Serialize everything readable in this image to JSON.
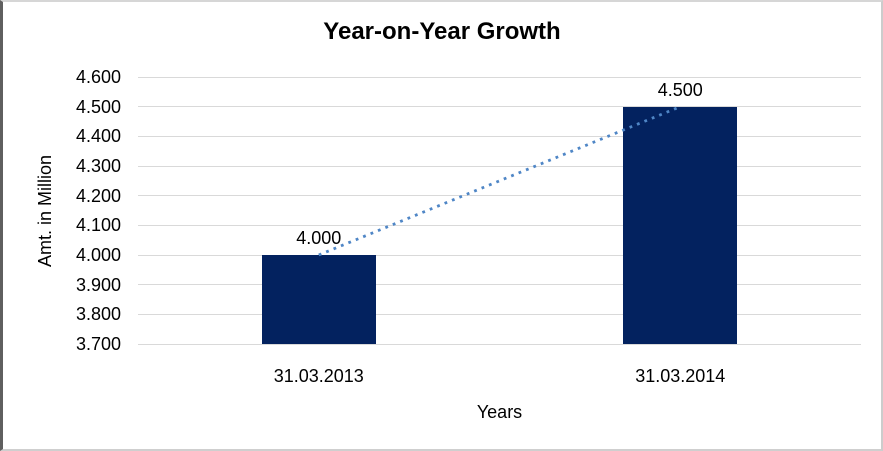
{
  "chart_data": {
    "type": "bar",
    "title": "Year-on-Year Growth",
    "xlabel": "Years",
    "ylabel": "Amt. in Million",
    "categories": [
      "31.03.2013",
      "31.03.2014"
    ],
    "series": [
      {
        "name": "Amt. in Million",
        "values": [
          4000,
          4500
        ],
        "value_labels": [
          "4.000",
          "4.500"
        ]
      }
    ],
    "y_ticks": [
      {
        "value": 4600,
        "label": "4.600"
      },
      {
        "value": 4500,
        "label": "4.500"
      },
      {
        "value": 4400,
        "label": "4.400"
      },
      {
        "value": 4300,
        "label": "4.300"
      },
      {
        "value": 4200,
        "label": "4.200"
      },
      {
        "value": 4100,
        "label": "4.100"
      },
      {
        "value": 4000,
        "label": "4.000"
      },
      {
        "value": 3900,
        "label": "3.900"
      },
      {
        "value": 3800,
        "label": "3.800"
      },
      {
        "value": 3700,
        "label": "3.700"
      }
    ],
    "ylim": [
      3700,
      4600
    ],
    "grid": true,
    "legend": "none",
    "trendline": {
      "style": "dotted",
      "from_value": 4000,
      "to_value": 4500
    },
    "colors": {
      "bar": "#03225f",
      "trendline": "#4f86c6",
      "gridline": "#d9d9d9",
      "text": "#000000",
      "background": "#ffffff"
    }
  }
}
